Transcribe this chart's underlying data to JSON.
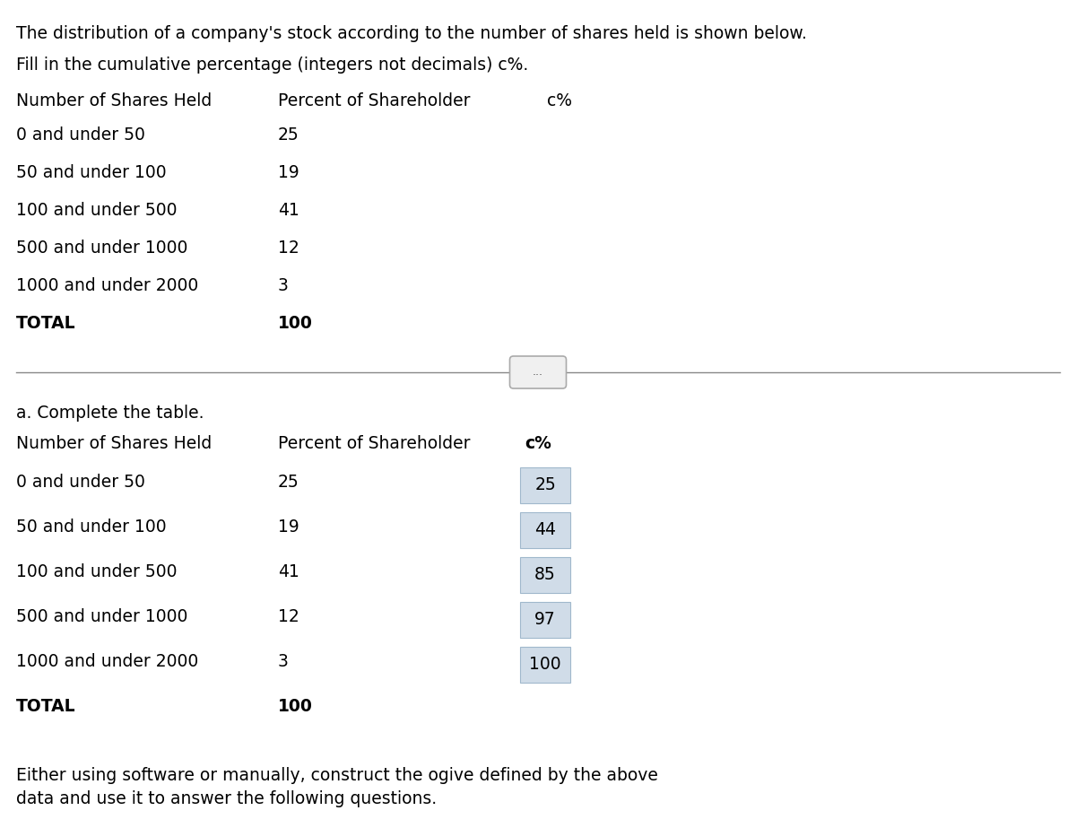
{
  "title_line1": "The distribution of a company's stock according to the number of shares held is shown below.",
  "title_line2": "Fill in the cumulative percentage (integers not decimals) c%.",
  "categories": [
    "0 and under 50",
    "50 and under 100",
    "100 and under 500",
    "500 and under 1000",
    "1000 and under 2000",
    "TOTAL"
  ],
  "percent_col": [
    25,
    19,
    41,
    12,
    3,
    100
  ],
  "cumulative_col": [
    25,
    44,
    85,
    97,
    100
  ],
  "col1_header": "Number of Shares Held",
  "col2_header": "Percent of Shareholder",
  "col3_header": "c%",
  "separator_label": "...",
  "part_a_label": "a. Complete the table.",
  "footer_text": "Either using software or manually, construct the ogive defined by the above\ndata and use it to answer the following questions.",
  "bg_color": "#ffffff",
  "text_color": "#000000",
  "box_color": "#d0dce8",
  "box_edge_color": "#a0b8cc",
  "font_size": 13.5,
  "header_font_size": 13.5,
  "separator_box_color": "#f0f0f0",
  "separator_box_edge": "#aaaaaa"
}
